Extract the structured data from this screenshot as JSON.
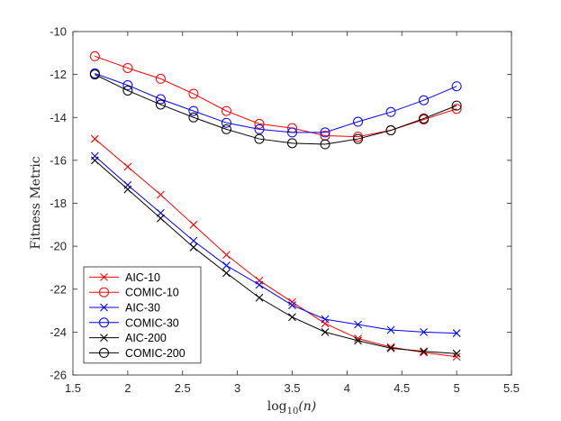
{
  "chart_data": {
    "type": "line",
    "title": "",
    "xlabel": "log10(n)",
    "xlabel_base": "log",
    "xlabel_sub": "10",
    "xlabel_arg": "(n)",
    "ylabel": "Fitness Metric",
    "xlim": [
      1.5,
      5.5
    ],
    "ylim": [
      -26,
      -10
    ],
    "xticks": [
      1.5,
      2,
      2.5,
      3,
      3.5,
      4,
      4.5,
      5,
      5.5
    ],
    "xtick_labels": [
      "1.5",
      "2",
      "2.5",
      "3",
      "3.5",
      "4",
      "4.5",
      "5",
      "5.5"
    ],
    "yticks": [
      -26,
      -24,
      -22,
      -20,
      -18,
      -16,
      -14,
      -12,
      -10
    ],
    "ytick_labels": [
      "-26",
      "-24",
      "-22",
      "-20",
      "-18",
      "-16",
      "-14",
      "-12",
      "-10"
    ],
    "grid": false,
    "legend_position": "bottom-left",
    "x": [
      1.7,
      2.0,
      2.3,
      2.6,
      2.9,
      3.2,
      3.5,
      3.8,
      4.1,
      4.4,
      4.7,
      5.0
    ],
    "series": [
      {
        "name": "AIC-10",
        "color": "#ff0000",
        "marker": "x",
        "values": [
          -15.0,
          -16.3,
          -17.6,
          -19.0,
          -20.4,
          -21.6,
          -22.6,
          -23.6,
          -24.3,
          -24.7,
          -24.95,
          -25.15
        ]
      },
      {
        "name": "COMIC-10",
        "color": "#ff0000",
        "marker": "o",
        "values": [
          -11.15,
          -11.7,
          -12.2,
          -12.9,
          -13.7,
          -14.3,
          -14.5,
          -14.85,
          -14.9,
          -14.6,
          -14.1,
          -13.6
        ]
      },
      {
        "name": "AIC-30",
        "color": "#0000ff",
        "marker": "x",
        "values": [
          -15.8,
          -17.15,
          -18.45,
          -19.75,
          -20.9,
          -21.8,
          -22.75,
          -23.4,
          -23.65,
          -23.9,
          -24.0,
          -24.05
        ]
      },
      {
        "name": "COMIC-30",
        "color": "#0000ff",
        "marker": "o",
        "values": [
          -11.95,
          -12.5,
          -13.15,
          -13.7,
          -14.25,
          -14.55,
          -14.7,
          -14.7,
          -14.2,
          -13.75,
          -13.2,
          -12.55
        ]
      },
      {
        "name": "AIC-200",
        "color": "#000000",
        "marker": "x",
        "values": [
          -16.0,
          -17.35,
          -18.7,
          -20.05,
          -21.25,
          -22.4,
          -23.3,
          -24.0,
          -24.4,
          -24.75,
          -24.9,
          -25.0
        ]
      },
      {
        "name": "COMIC-200",
        "color": "#000000",
        "marker": "o",
        "values": [
          -12.0,
          -12.75,
          -13.4,
          -14.0,
          -14.55,
          -15.0,
          -15.2,
          -15.25,
          -15.0,
          -14.6,
          -14.05,
          -13.45
        ]
      }
    ]
  }
}
